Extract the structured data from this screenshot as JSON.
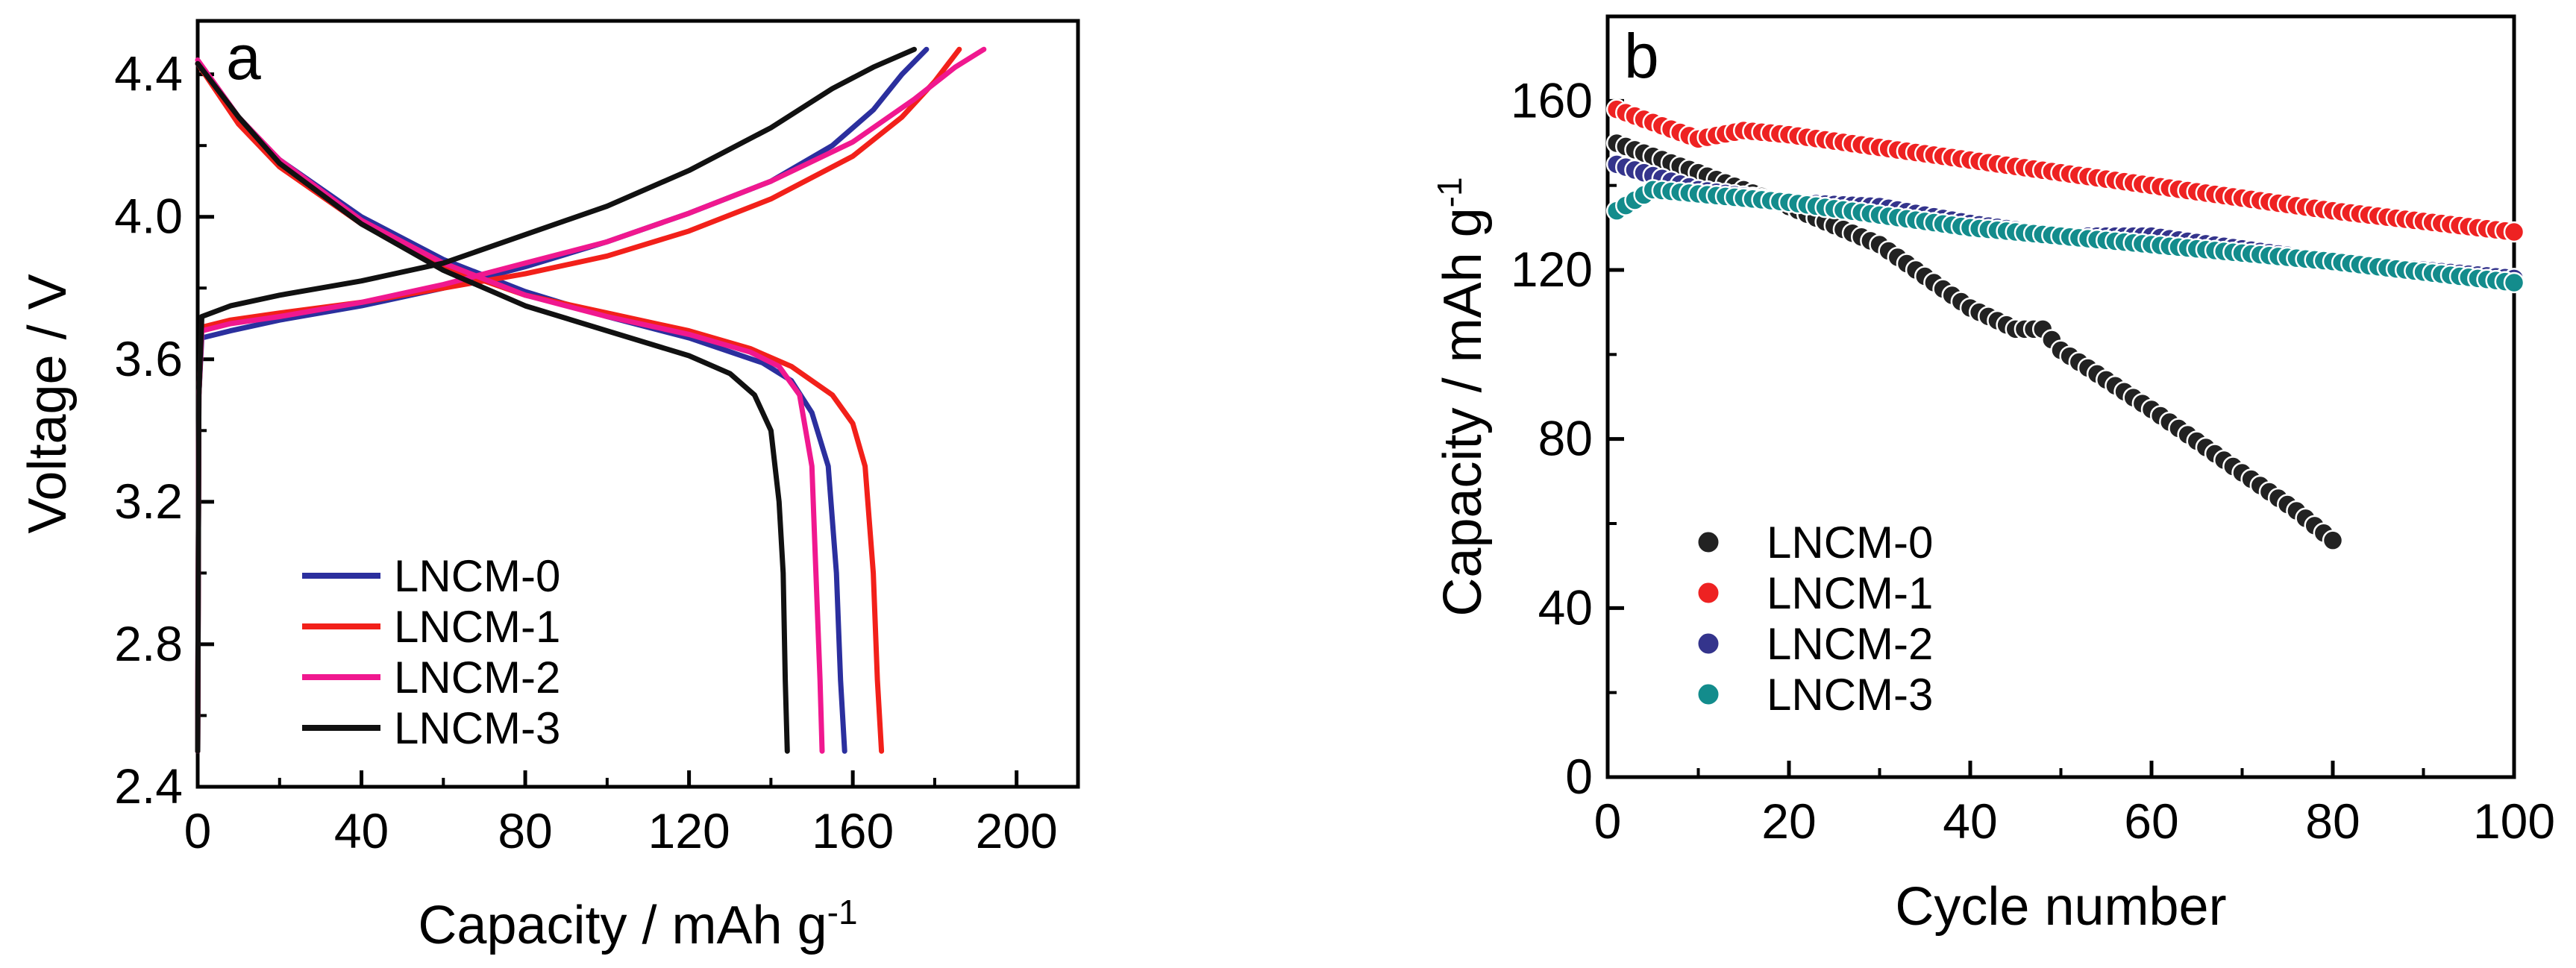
{
  "chart_data": [
    {
      "panel_label": "a",
      "type": "line",
      "xlabel": "Capacity / mAh g",
      "xlabel_superscript": "-1",
      "ylabel": "Voltage / V",
      "xlim": [
        0,
        215
      ],
      "ylim": [
        2.4,
        4.55
      ],
      "xticks": [
        0,
        40,
        80,
        120,
        160,
        200
      ],
      "xtick_labels": [
        "0",
        "40",
        "80",
        "120",
        "160",
        "200"
      ],
      "yticks": [
        2.4,
        2.8,
        3.2,
        3.6,
        4.0,
        4.4
      ],
      "ytick_labels": [
        "2.4",
        "2.8",
        "3.2",
        "3.6",
        "4.0",
        "4.4"
      ],
      "legend_position": "lower-left",
      "series": [
        {
          "name": "LNCM-0",
          "color": "#2b2f9e",
          "charge": [
            [
              0,
              2.5
            ],
            [
              0.3,
              3.5
            ],
            [
              1,
              3.66
            ],
            [
              8,
              3.68
            ],
            [
              20,
              3.71
            ],
            [
              40,
              3.75
            ],
            [
              60,
              3.8
            ],
            [
              80,
              3.86
            ],
            [
              100,
              3.93
            ],
            [
              120,
              4.01
            ],
            [
              140,
              4.1
            ],
            [
              155,
              4.2
            ],
            [
              165,
              4.3
            ],
            [
              172,
              4.4
            ],
            [
              178,
              4.47
            ]
          ],
          "discharge": [
            [
              0,
              4.43
            ],
            [
              10,
              4.27
            ],
            [
              20,
              4.16
            ],
            [
              40,
              4.0
            ],
            [
              60,
              3.88
            ],
            [
              80,
              3.79
            ],
            [
              100,
              3.72
            ],
            [
              120,
              3.66
            ],
            [
              138,
              3.59
            ],
            [
              145,
              3.54
            ],
            [
              150,
              3.45
            ],
            [
              154,
              3.3
            ],
            [
              156,
              3.0
            ],
            [
              157,
              2.7
            ],
            [
              158,
              2.5
            ]
          ]
        },
        {
          "name": "LNCM-1",
          "color": "#f2201a",
          "charge": [
            [
              0,
              2.5
            ],
            [
              0.3,
              3.5
            ],
            [
              1,
              3.69
            ],
            [
              8,
              3.71
            ],
            [
              20,
              3.73
            ],
            [
              40,
              3.76
            ],
            [
              60,
              3.8
            ],
            [
              80,
              3.84
            ],
            [
              100,
              3.89
            ],
            [
              120,
              3.96
            ],
            [
              140,
              4.05
            ],
            [
              160,
              4.17
            ],
            [
              172,
              4.28
            ],
            [
              180,
              4.38
            ],
            [
              186,
              4.47
            ]
          ],
          "discharge": [
            [
              0,
              4.43
            ],
            [
              10,
              4.26
            ],
            [
              20,
              4.14
            ],
            [
              40,
              3.98
            ],
            [
              60,
              3.86
            ],
            [
              80,
              3.78
            ],
            [
              100,
              3.73
            ],
            [
              120,
              3.68
            ],
            [
              135,
              3.63
            ],
            [
              145,
              3.58
            ],
            [
              155,
              3.5
            ],
            [
              160,
              3.42
            ],
            [
              163,
              3.3
            ],
            [
              165,
              3.0
            ],
            [
              166,
              2.7
            ],
            [
              167,
              2.5
            ]
          ]
        },
        {
          "name": "LNCM-2",
          "color": "#f0188f",
          "charge": [
            [
              0,
              2.5
            ],
            [
              0.3,
              3.5
            ],
            [
              1,
              3.68
            ],
            [
              8,
              3.7
            ],
            [
              20,
              3.72
            ],
            [
              40,
              3.76
            ],
            [
              60,
              3.81
            ],
            [
              80,
              3.87
            ],
            [
              100,
              3.93
            ],
            [
              120,
              4.01
            ],
            [
              140,
              4.1
            ],
            [
              160,
              4.21
            ],
            [
              175,
              4.33
            ],
            [
              185,
              4.42
            ],
            [
              192,
              4.47
            ]
          ],
          "discharge": [
            [
              0,
              4.44
            ],
            [
              10,
              4.28
            ],
            [
              20,
              4.16
            ],
            [
              40,
              3.99
            ],
            [
              60,
              3.87
            ],
            [
              80,
              3.78
            ],
            [
              100,
              3.72
            ],
            [
              120,
              3.67
            ],
            [
              135,
              3.62
            ],
            [
              142,
              3.58
            ],
            [
              147,
              3.5
            ],
            [
              150,
              3.3
            ],
            [
              151,
              3.0
            ],
            [
              152,
              2.7
            ],
            [
              152.5,
              2.5
            ]
          ]
        },
        {
          "name": "LNCM-3",
          "color": "#111111",
          "charge": [
            [
              0,
              2.5
            ],
            [
              0.3,
              3.5
            ],
            [
              1,
              3.72
            ],
            [
              8,
              3.75
            ],
            [
              20,
              3.78
            ],
            [
              40,
              3.82
            ],
            [
              60,
              3.87
            ],
            [
              80,
              3.95
            ],
            [
              100,
              4.03
            ],
            [
              120,
              4.13
            ],
            [
              140,
              4.25
            ],
            [
              155,
              4.36
            ],
            [
              165,
              4.42
            ],
            [
              175,
              4.47
            ]
          ],
          "discharge": [
            [
              0,
              4.43
            ],
            [
              10,
              4.28
            ],
            [
              20,
              4.15
            ],
            [
              40,
              3.98
            ],
            [
              60,
              3.85
            ],
            [
              80,
              3.75
            ],
            [
              100,
              3.68
            ],
            [
              120,
              3.61
            ],
            [
              130,
              3.56
            ],
            [
              136,
              3.5
            ],
            [
              140,
              3.4
            ],
            [
              142,
              3.2
            ],
            [
              143,
              3.0
            ],
            [
              143.5,
              2.7
            ],
            [
              144,
              2.5
            ]
          ]
        }
      ]
    },
    {
      "panel_label": "b",
      "type": "scatter",
      "xlabel": "Cycle number",
      "ylabel": "Capacity / mAh g",
      "ylabel_superscript": "-1",
      "xlim": [
        0,
        100
      ],
      "ylim": [
        0,
        180
      ],
      "xticks": [
        0,
        20,
        40,
        60,
        80,
        100
      ],
      "xtick_labels": [
        "0",
        "20",
        "40",
        "60",
        "80",
        "100"
      ],
      "yticks": [
        0,
        40,
        80,
        120,
        160
      ],
      "ytick_labels": [
        "0",
        "40",
        "80",
        "120",
        "160"
      ],
      "legend_position": "lower-left",
      "series": [
        {
          "name": "LNCM-0",
          "color": "#222222",
          "x_start": 1,
          "x_end": 80,
          "anchors": [
            [
              1,
              150
            ],
            [
              10,
              143
            ],
            [
              20,
              135
            ],
            [
              30,
              126
            ],
            [
              40,
              111
            ],
            [
              45,
              106
            ],
            [
              48,
              106
            ],
            [
              50,
              101
            ],
            [
              60,
              87
            ],
            [
              70,
              72
            ],
            [
              76,
              63
            ],
            [
              80,
              56
            ]
          ]
        },
        {
          "name": "LNCM-1",
          "color": "#ee2222",
          "x_start": 1,
          "x_end": 100,
          "anchors": [
            [
              1,
              158
            ],
            [
              10,
              151
            ],
            [
              15,
              153
            ],
            [
              20,
              152
            ],
            [
              40,
              146
            ],
            [
              60,
              140
            ],
            [
              80,
              134
            ],
            [
              100,
              129
            ]
          ]
        },
        {
          "name": "LNCM-2",
          "color": "#34348c",
          "x_start": 1,
          "x_end": 100,
          "anchors": [
            [
              1,
              145
            ],
            [
              10,
              139
            ],
            [
              20,
              136
            ],
            [
              30,
              135
            ],
            [
              40,
              131
            ],
            [
              50,
              128
            ],
            [
              60,
              128
            ],
            [
              70,
              125
            ],
            [
              80,
              122
            ],
            [
              90,
              120
            ],
            [
              100,
              118
            ]
          ]
        },
        {
          "name": "LNCM-3",
          "color": "#138c8c",
          "x_start": 1,
          "x_end": 100,
          "anchors": [
            [
              1,
              134
            ],
            [
              5,
              139
            ],
            [
              20,
              136
            ],
            [
              40,
              130
            ],
            [
              60,
              126
            ],
            [
              80,
              122
            ],
            [
              100,
              117
            ]
          ]
        }
      ]
    }
  ]
}
